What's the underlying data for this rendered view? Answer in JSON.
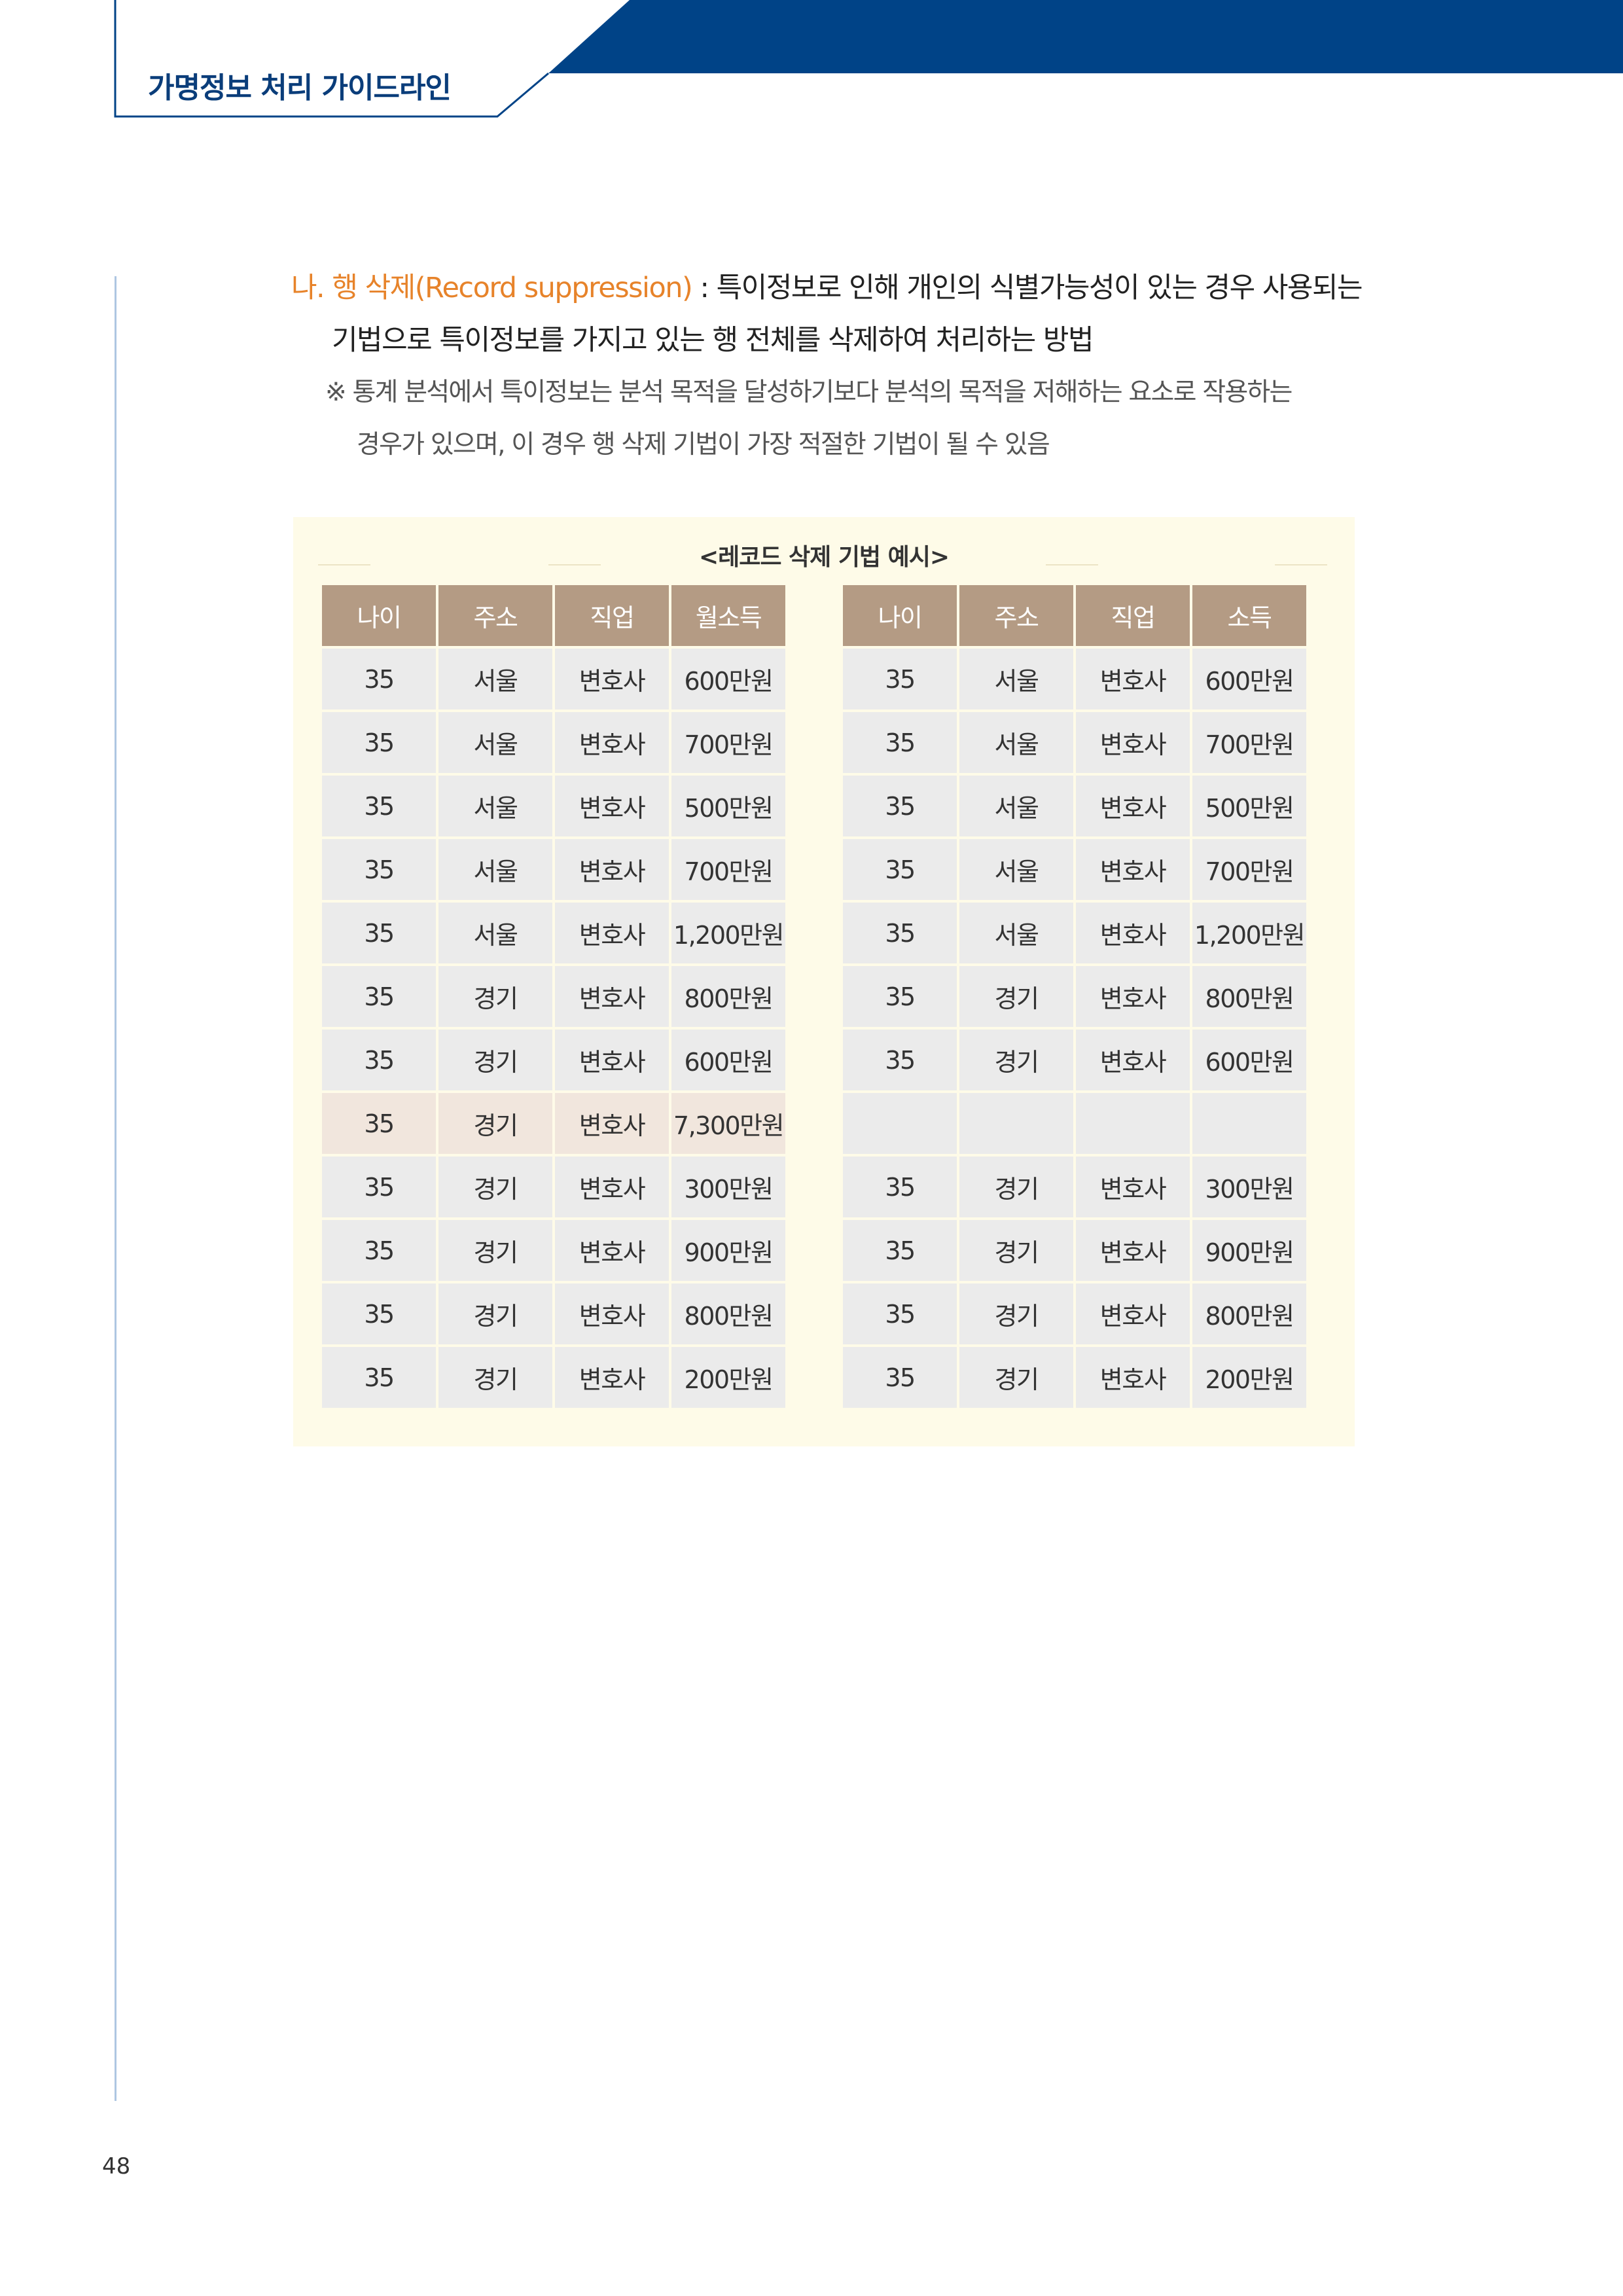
{
  "header": {
    "title": "가명정보 처리 가이드라인",
    "brand_color": "#004387"
  },
  "body": {
    "heading_label": "나. 행 삭제(Record suppression)",
    "heading_colon": " : ",
    "line1_rest": "특이정보로 인해 개인의 식별가능성이 있는 경우 사용되는",
    "line2": "기법으로 특이정보를 가지고 있는 행 전체를 삭제하여 처리하는 방법",
    "note1": "※ 통계 분석에서 특이정보는 분석 목적을 달성하기보다 분석의 목적을 저해하는 요소로 작용하는",
    "note2": "경우가 있으며, 이 경우 행 삭제 기법이 가장 적절한 기법이 될 수 있음",
    "accent_color": "#e7832a"
  },
  "table": {
    "caption": "<레코드 삭제 기법 예시>",
    "left_headers": [
      "나이",
      "주소",
      "직업",
      "월소득"
    ],
    "right_headers": [
      "나이",
      "주소",
      "직업",
      "소득"
    ],
    "highlighted_row_index": 7,
    "left_rows": [
      [
        "35",
        "서울",
        "변호사",
        "600만원"
      ],
      [
        "35",
        "서울",
        "변호사",
        "700만원"
      ],
      [
        "35",
        "서울",
        "변호사",
        "500만원"
      ],
      [
        "35",
        "서울",
        "변호사",
        "700만원"
      ],
      [
        "35",
        "서울",
        "변호사",
        "1,200만원"
      ],
      [
        "35",
        "경기",
        "변호사",
        "800만원"
      ],
      [
        "35",
        "경기",
        "변호사",
        "600만원"
      ],
      [
        "35",
        "경기",
        "변호사",
        "7,300만원"
      ],
      [
        "35",
        "경기",
        "변호사",
        "300만원"
      ],
      [
        "35",
        "경기",
        "변호사",
        "900만원"
      ],
      [
        "35",
        "경기",
        "변호사",
        "800만원"
      ],
      [
        "35",
        "경기",
        "변호사",
        "200만원"
      ]
    ],
    "right_rows": [
      [
        "35",
        "서울",
        "변호사",
        "600만원"
      ],
      [
        "35",
        "서울",
        "변호사",
        "700만원"
      ],
      [
        "35",
        "서울",
        "변호사",
        "500만원"
      ],
      [
        "35",
        "서울",
        "변호사",
        "700만원"
      ],
      [
        "35",
        "서울",
        "변호사",
        "1,200만원"
      ],
      [
        "35",
        "경기",
        "변호사",
        "800만원"
      ],
      [
        "35",
        "경기",
        "변호사",
        "600만원"
      ],
      [
        "",
        "",
        "",
        ""
      ],
      [
        "35",
        "경기",
        "변호사",
        "300만원"
      ],
      [
        "35",
        "경기",
        "변호사",
        "900만원"
      ],
      [
        "35",
        "경기",
        "변호사",
        "800만원"
      ],
      [
        "35",
        "경기",
        "변호사",
        "200만원"
      ]
    ]
  },
  "footer": {
    "page_number": "48"
  }
}
